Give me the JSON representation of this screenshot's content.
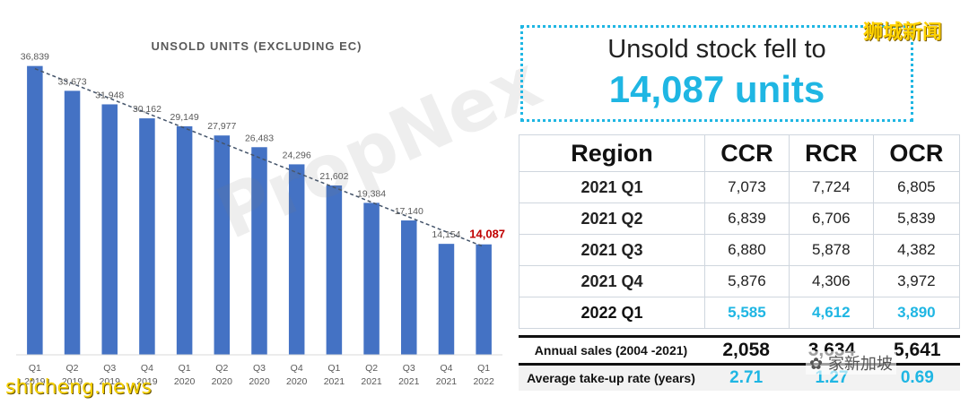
{
  "chart_data": {
    "type": "bar",
    "title": "UNSOLD UNITS (EXCLUDING EC)",
    "categories": [
      [
        "Q1",
        "2019"
      ],
      [
        "Q2",
        "2019"
      ],
      [
        "Q3",
        "2019"
      ],
      [
        "Q4",
        "2019"
      ],
      [
        "Q1",
        "2020"
      ],
      [
        "Q2",
        "2020"
      ],
      [
        "Q3",
        "2020"
      ],
      [
        "Q4",
        "2020"
      ],
      [
        "Q1",
        "2021"
      ],
      [
        "Q2",
        "2021"
      ],
      [
        "Q3",
        "2021"
      ],
      [
        "Q4",
        "2021"
      ],
      [
        "Q1",
        "2022"
      ]
    ],
    "values": [
      36839,
      33673,
      31948,
      30162,
      29149,
      27977,
      26483,
      24296,
      21602,
      19384,
      17140,
      14154,
      14087
    ],
    "value_labels": [
      "36,839",
      "33,673",
      "31,948",
      "30,162",
      "29,149",
      "27,977",
      "26,483",
      "24,296",
      "21,602",
      "19,384",
      "17,140",
      "14,154",
      "14,087"
    ],
    "ylim": [
      0,
      40000
    ],
    "trendline": "dashed linear",
    "highlight_last_label": true,
    "colors": {
      "bar": "#4472c4",
      "trend": "#44546a",
      "label": "#595959",
      "highlight": "#c00000"
    }
  },
  "callout": {
    "line1": "Unsold stock fell to",
    "line2": "14,087 units",
    "color": "#1fb6e3"
  },
  "region_table": {
    "headers": [
      "Region",
      "CCR",
      "RCR",
      "OCR"
    ],
    "rows": [
      {
        "label": "2021 Q1",
        "ccr": "7,073",
        "rcr": "7,724",
        "ocr": "6,805"
      },
      {
        "label": "2021 Q2",
        "ccr": "6,839",
        "rcr": "6,706",
        "ocr": "5,839"
      },
      {
        "label": "2021 Q3",
        "ccr": "6,880",
        "rcr": "5,878",
        "ocr": "4,382"
      },
      {
        "label": "2021 Q4",
        "ccr": "5,876",
        "rcr": "4,306",
        "ocr": "3,972"
      },
      {
        "label": "2022 Q1",
        "ccr": "5,585",
        "rcr": "4,612",
        "ocr": "3,890"
      }
    ]
  },
  "summary": {
    "annual_sales": {
      "label": "Annual sales (2004 -2021)",
      "ccr": "2,058",
      "rcr": "3,634",
      "ocr": "5,641"
    },
    "take_up": {
      "label": "Average take-up rate (years)",
      "ccr": "2.71",
      "rcr": "1.27",
      "ocr": "0.69"
    }
  },
  "watermarks": {
    "propnex": "PropNex",
    "shicheng_top": "狮城新闻",
    "shicheng_bottom": "shicheng.news",
    "wechat": "家新加坡"
  }
}
